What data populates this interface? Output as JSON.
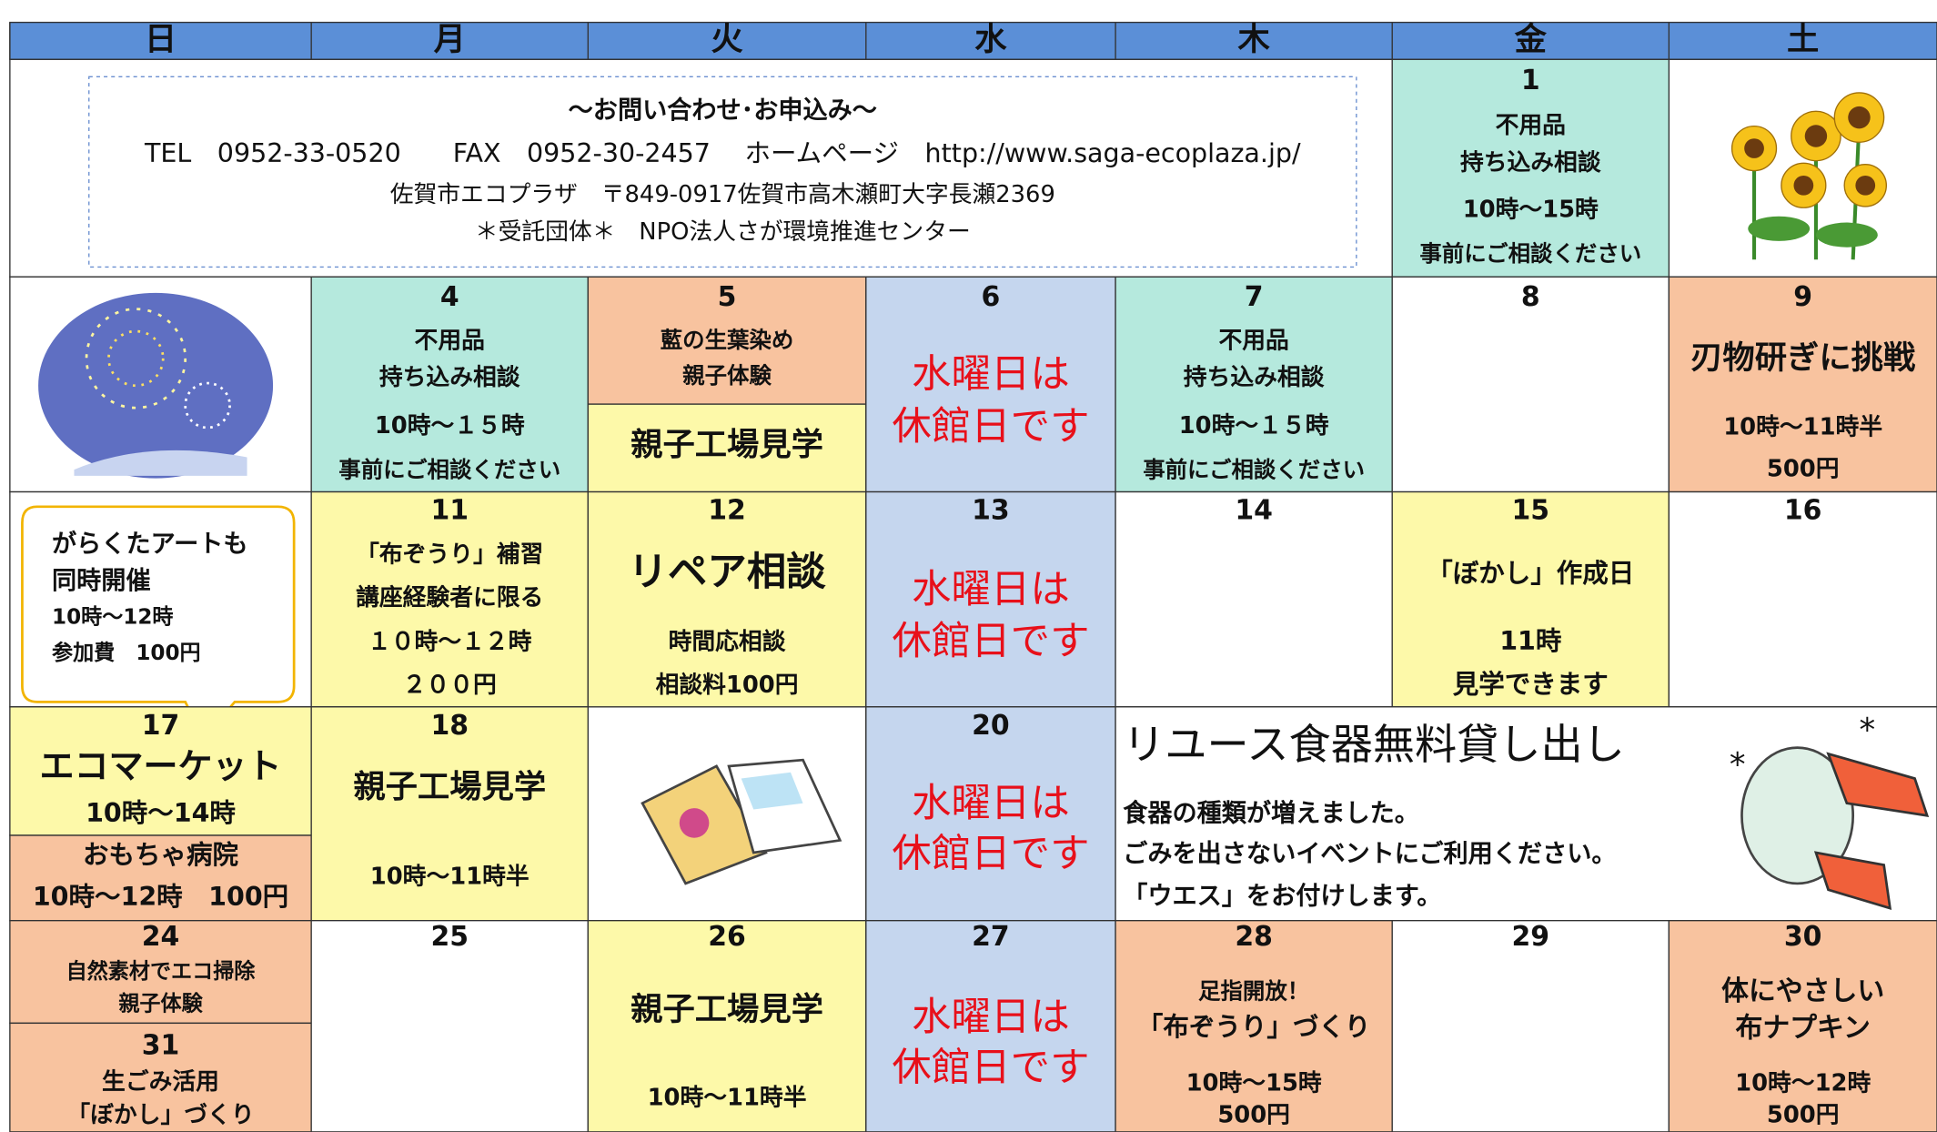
{
  "header": {
    "days": [
      "日",
      "月",
      "火",
      "水",
      "木",
      "金",
      "土"
    ]
  },
  "contact": {
    "title": "～お問い合わせ･お申込み～",
    "lines": [
      "TEL　0952-33-0520　　FAX　0952-30-2457　 ホームページ　http://www.saga-ecoplaza.jp/",
      "佐賀市エコプラザ　〒849-0917佐賀市高木瀬町大字長瀬2369",
      "＊受託団体＊　NPO法人さが環境推進センター"
    ]
  },
  "cells": [
    {
      "day": "1",
      "lines": [
        "不用品",
        "持ち込み相談",
        "10時～15時",
        "事前にご相談ください"
      ]
    },
    {
      "day": "4",
      "lines": [
        "不用品",
        "持ち込み相談",
        "10時～１５時",
        "事前にご相談ください"
      ]
    },
    {
      "day": "5",
      "lines": [
        "藍の生葉染め",
        "親子体験"
      ]
    },
    {
      "lines": [
        "親子工場見学"
      ]
    },
    {
      "day": "6",
      "lines": [
        "水曜日は",
        "休館日です"
      ]
    },
    {
      "day": "7",
      "lines": [
        "不用品",
        "持ち込み相談",
        "10時～１５時",
        "事前にご相談ください"
      ]
    },
    {
      "day": "8",
      "lines": []
    },
    {
      "day": "9",
      "lines": [
        "刃物研ぎに挑戦",
        "10時～11時半",
        "500円"
      ]
    },
    {
      "lines": [
        "がらくたアートも",
        "同時開催",
        "10時～12時",
        "参加費　100円"
      ]
    },
    {
      "day": "11",
      "lines": [
        "「布ぞうり」補習",
        "講座経験者に限る",
        "１０時～１２時",
        "２００円"
      ]
    },
    {
      "day": "12",
      "lines": [
        "リペア相談",
        "時間応相談",
        "相談料100円"
      ]
    },
    {
      "day": "13",
      "lines": [
        "水曜日は",
        "休館日です"
      ]
    },
    {
      "day": "14",
      "lines": []
    },
    {
      "day": "15",
      "lines": [
        "「ぼかし」作成日",
        "11時",
        "見学できます"
      ]
    },
    {
      "day": "16",
      "lines": []
    },
    {
      "day": "17",
      "lines": [
        "エコマーケット",
        "10時～14時"
      ]
    },
    {
      "lines": [
        "おもちゃ病院",
        "10時～12時　100円"
      ]
    },
    {
      "day": "18",
      "lines": [
        "親子工場見学",
        "10時～11時半"
      ]
    },
    {
      "day": "20",
      "lines": [
        "水曜日は",
        "休館日です"
      ]
    },
    {
      "lines": [
        "リユース食器無料貸し出し",
        "食器の種類が増えました。",
        "ごみを出さないイベントにご利用ください。",
        "「ウエス」をお付けします。"
      ]
    },
    {
      "day": "24",
      "lines": [
        "自然素材でエコ掃除",
        "親子体験"
      ]
    },
    {
      "day": "31",
      "lines": [
        "生ごみ活用",
        "「ぼかし」づくり"
      ]
    },
    {
      "day": "25",
      "lines": []
    },
    {
      "day": "26",
      "lines": [
        "親子工場見学",
        "10時～11時半"
      ]
    },
    {
      "day": "27",
      "lines": [
        "水曜日は",
        "休館日です"
      ]
    },
    {
      "day": "28",
      "lines": [
        "足指開放！",
        "「布ぞうり」づくり",
        "10時～15時",
        "500円"
      ]
    },
    {
      "day": "29",
      "lines": []
    },
    {
      "day": "30",
      "lines": [
        "体にやさしい",
        "布ナプキン",
        "10時～12時",
        "500円"
      ]
    }
  ]
}
